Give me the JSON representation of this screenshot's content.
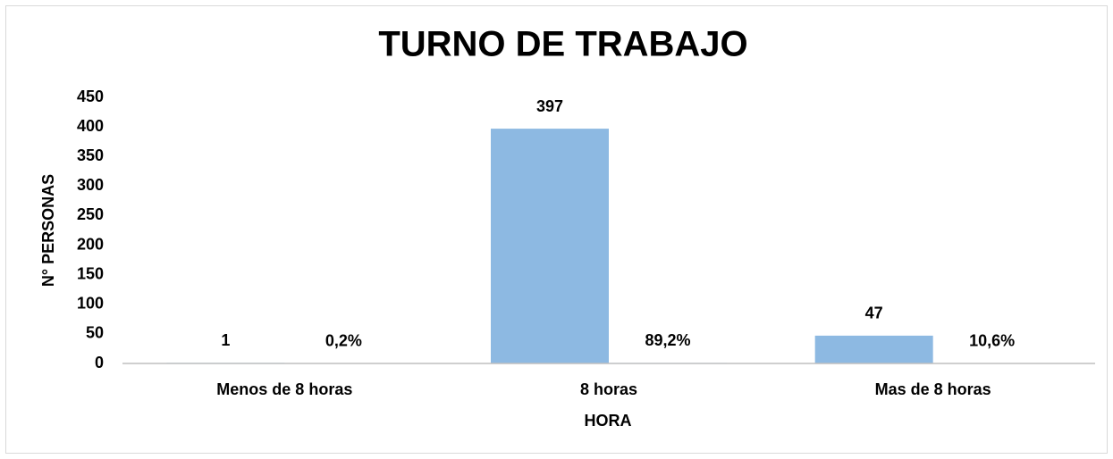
{
  "chart_data": {
    "type": "bar",
    "title": "TURNO DE TRABAJO",
    "x_label": "HORA",
    "y_label": "N° PERSONAS",
    "categories": [
      "Menos de 8 horas",
      "8 horas",
      "Mas de 8 horas"
    ],
    "series": [
      {
        "color": "#8db9e2",
        "values": [
          1,
          397,
          47
        ]
      },
      {
        "color": "#8db9e2",
        "values": [
          0.002,
          0.892,
          0.106
        ],
        "value_labels": [
          "0,2%",
          "89,2%",
          "10,6%"
        ]
      }
    ],
    "ylim": [
      0,
      450
    ],
    "yticks": [
      0,
      50,
      100,
      150,
      200,
      250,
      300,
      350,
      400,
      450
    ],
    "grid": false
  }
}
